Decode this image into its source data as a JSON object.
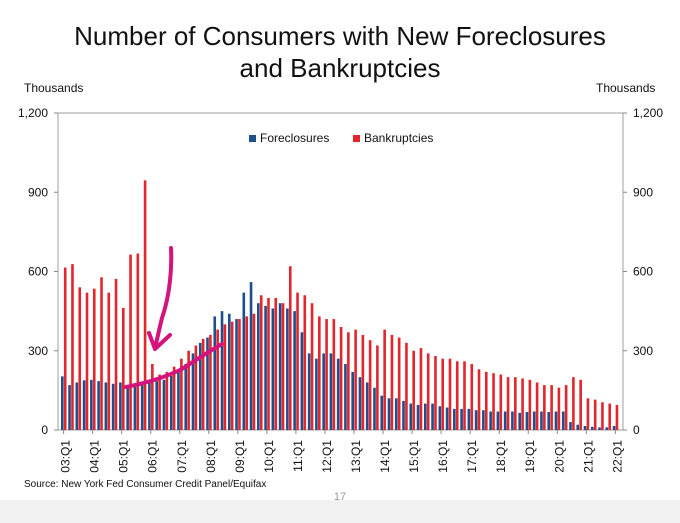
{
  "title_line1": "Number of Consumers with New Foreclosures",
  "title_line2": "and Bankruptcies",
  "unit_left": "Thousands",
  "unit_right": "Thousands",
  "source": "Source: New York Fed Consumer Credit Panel/Equifax",
  "page_number": "17",
  "colors": {
    "foreclosures": "#1f4e8c",
    "bankruptcies": "#e3262c",
    "annotation": "#d4137d"
  },
  "chart_data": {
    "type": "bar",
    "title": "Number of Consumers with New Foreclosures and Bankruptcies",
    "ylabel": "Thousands",
    "ylim": [
      0,
      1200
    ],
    "yticks": [
      0,
      300,
      600,
      900,
      1200
    ],
    "ytick_labels": [
      "0",
      "300",
      "600",
      "900",
      "1,200"
    ],
    "xtick_labels": [
      "03:Q1",
      "04:Q1",
      "05:Q1",
      "06:Q1",
      "07:Q1",
      "08:Q1",
      "09:Q1",
      "10:Q1",
      "11:Q1",
      "12:Q1",
      "13:Q1",
      "14:Q1",
      "15:Q1",
      "16:Q1",
      "17:Q1",
      "18:Q1",
      "19:Q1",
      "20:Q1",
      "21:Q1",
      "22:Q1"
    ],
    "legend": [
      "Foreclosures",
      "Bankruptcies"
    ],
    "legend_position": "top-center",
    "categories": [
      "03:Q1",
      "03:Q2",
      "03:Q3",
      "03:Q4",
      "04:Q1",
      "04:Q2",
      "04:Q3",
      "04:Q4",
      "05:Q1",
      "05:Q2",
      "05:Q3",
      "05:Q4",
      "06:Q1",
      "06:Q2",
      "06:Q3",
      "06:Q4",
      "07:Q1",
      "07:Q2",
      "07:Q3",
      "07:Q4",
      "08:Q1",
      "08:Q2",
      "08:Q3",
      "08:Q4",
      "09:Q1",
      "09:Q2",
      "09:Q3",
      "09:Q4",
      "10:Q1",
      "10:Q2",
      "10:Q3",
      "10:Q4",
      "11:Q1",
      "11:Q2",
      "11:Q3",
      "11:Q4",
      "12:Q1",
      "12:Q2",
      "12:Q3",
      "12:Q4",
      "13:Q1",
      "13:Q2",
      "13:Q3",
      "13:Q4",
      "14:Q1",
      "14:Q2",
      "14:Q3",
      "14:Q4",
      "15:Q1",
      "15:Q2",
      "15:Q3",
      "15:Q4",
      "16:Q1",
      "16:Q2",
      "16:Q3",
      "16:Q4",
      "17:Q1",
      "17:Q2",
      "17:Q3",
      "17:Q4",
      "18:Q1",
      "18:Q2",
      "18:Q3",
      "18:Q4",
      "19:Q1",
      "19:Q2",
      "19:Q3",
      "19:Q4",
      "20:Q1",
      "20:Q2",
      "20:Q3",
      "20:Q4",
      "21:Q1",
      "21:Q2",
      "21:Q3",
      "21:Q4",
      "22:Q1"
    ],
    "series": [
      {
        "name": "Foreclosures",
        "values": [
          203,
          170,
          180,
          188,
          190,
          185,
          180,
          175,
          180,
          170,
          165,
          175,
          180,
          185,
          190,
          205,
          220,
          250,
          290,
          330,
          350,
          430,
          450,
          440,
          420,
          520,
          560,
          480,
          470,
          460,
          480,
          460,
          450,
          370,
          290,
          270,
          290,
          290,
          270,
          250,
          220,
          200,
          180,
          160,
          130,
          120,
          120,
          110,
          100,
          95,
          100,
          100,
          90,
          85,
          80,
          80,
          80,
          75,
          75,
          70,
          70,
          70,
          70,
          65,
          68,
          70,
          70,
          68,
          70,
          70,
          30,
          20,
          15,
          12,
          10,
          10,
          15
        ]
      },
      {
        "name": "Bankruptcies",
        "values": [
          615,
          628,
          540,
          520,
          535,
          578,
          520,
          572,
          462,
          664,
          668,
          945,
          250,
          210,
          220,
          240,
          270,
          300,
          320,
          345,
          360,
          380,
          400,
          410,
          420,
          430,
          440,
          510,
          500,
          500,
          480,
          620,
          520,
          510,
          480,
          430,
          420,
          420,
          390,
          370,
          380,
          360,
          340,
          320,
          380,
          360,
          350,
          330,
          300,
          310,
          290,
          280,
          270,
          270,
          260,
          260,
          250,
          230,
          220,
          215,
          210,
          200,
          200,
          195,
          190,
          180,
          170,
          170,
          160,
          170,
          200,
          190,
          120,
          115,
          105,
          100,
          95
        ]
      }
    ],
    "annotation": "hand-drawn arrow and curve"
  }
}
